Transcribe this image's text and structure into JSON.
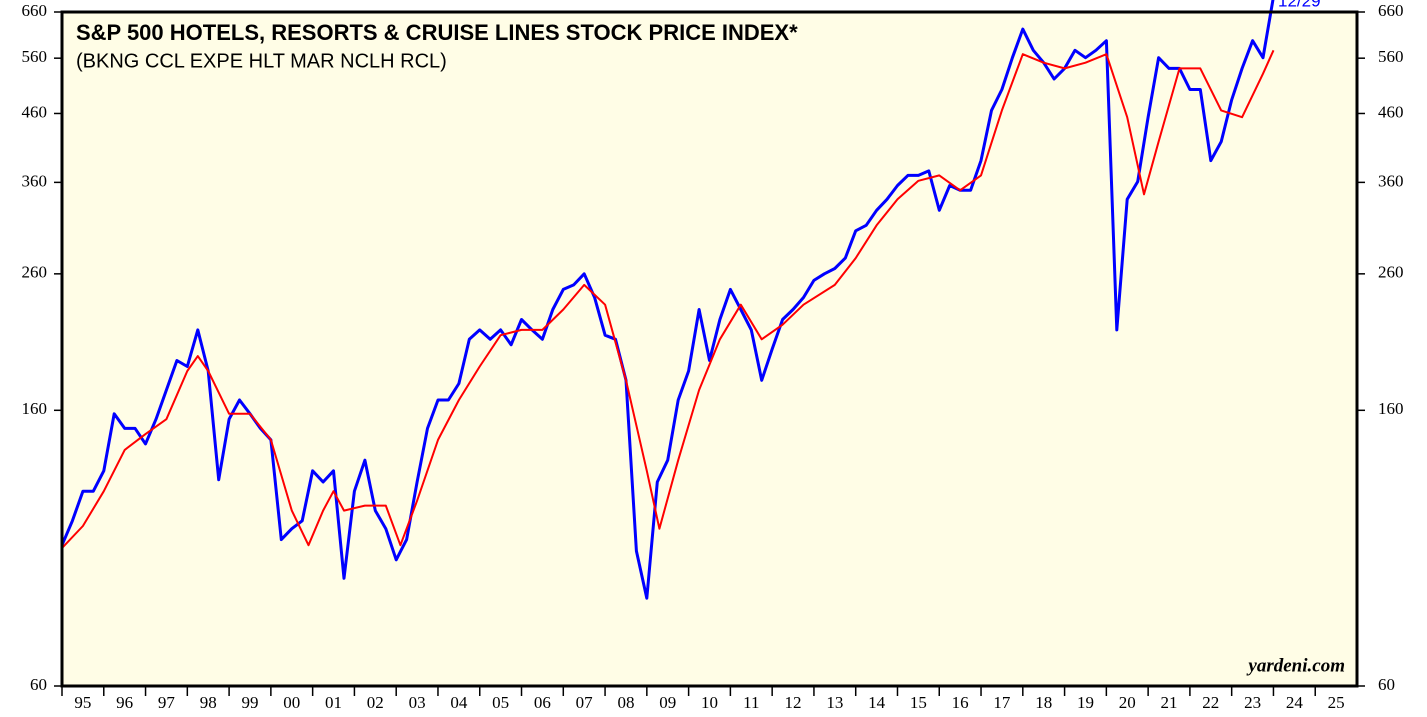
{
  "chart_data": {
    "type": "line",
    "title": "S&P 500 HOTELS, RESORTS & CRUISE LINES STOCK PRICE INDEX*",
    "subtitle": "(BKNG CCL EXPE HLT MAR NCLH RCL)",
    "source": "yardeni.com",
    "annotation": "12/29",
    "log_scale": true,
    "ylim": [
      60,
      660
    ],
    "yticks": [
      60,
      160,
      260,
      360,
      460,
      560,
      660
    ],
    "xlim": [
      1995,
      2026
    ],
    "xticks": [
      {
        "value": 1995,
        "label": "95"
      },
      {
        "value": 1996,
        "label": "96"
      },
      {
        "value": 1997,
        "label": "97"
      },
      {
        "value": 1998,
        "label": "98"
      },
      {
        "value": 1999,
        "label": "99"
      },
      {
        "value": 2000,
        "label": "00"
      },
      {
        "value": 2001,
        "label": "01"
      },
      {
        "value": 2002,
        "label": "02"
      },
      {
        "value": 2003,
        "label": "03"
      },
      {
        "value": 2004,
        "label": "04"
      },
      {
        "value": 2005,
        "label": "05"
      },
      {
        "value": 2006,
        "label": "06"
      },
      {
        "value": 2007,
        "label": "07"
      },
      {
        "value": 2008,
        "label": "08"
      },
      {
        "value": 2009,
        "label": "09"
      },
      {
        "value": 2010,
        "label": "10"
      },
      {
        "value": 2011,
        "label": "11"
      },
      {
        "value": 2012,
        "label": "12"
      },
      {
        "value": 2013,
        "label": "13"
      },
      {
        "value": 2014,
        "label": "14"
      },
      {
        "value": 2015,
        "label": "15"
      },
      {
        "value": 2016,
        "label": "16"
      },
      {
        "value": 2017,
        "label": "17"
      },
      {
        "value": 2018,
        "label": "18"
      },
      {
        "value": 2019,
        "label": "19"
      },
      {
        "value": 2020,
        "label": "20"
      },
      {
        "value": 2021,
        "label": "21"
      },
      {
        "value": 2022,
        "label": "22"
      },
      {
        "value": 2023,
        "label": "23"
      },
      {
        "value": 2024,
        "label": "24"
      },
      {
        "value": 2025,
        "label": "25"
      }
    ],
    "series": [
      {
        "color": "#0000ff",
        "x": [
          1995,
          1995.25,
          1995.5,
          1995.75,
          1996,
          1996.25,
          1996.5,
          1996.75,
          1997,
          1997.25,
          1997.5,
          1997.75,
          1998,
          1998.25,
          1998.5,
          1998.75,
          1999,
          1999.25,
          1999.5,
          1999.75,
          2000,
          2000.25,
          2000.5,
          2000.75,
          2001,
          2001.25,
          2001.5,
          2001.75,
          2002,
          2002.25,
          2002.5,
          2002.75,
          2003,
          2003.25,
          2003.5,
          2003.75,
          2004,
          2004.25,
          2004.5,
          2004.75,
          2005,
          2005.25,
          2005.5,
          2005.75,
          2006,
          2006.25,
          2006.5,
          2006.75,
          2007,
          2007.25,
          2007.5,
          2007.75,
          2008,
          2008.25,
          2008.5,
          2008.75,
          2009,
          2009.25,
          2009.5,
          2009.75,
          2010,
          2010.25,
          2010.5,
          2010.75,
          2011,
          2011.25,
          2011.5,
          2011.75,
          2012,
          2012.25,
          2012.5,
          2012.75,
          2013,
          2013.25,
          2013.5,
          2013.75,
          2014,
          2014.25,
          2014.5,
          2014.75,
          2015,
          2015.25,
          2015.5,
          2015.75,
          2016,
          2016.25,
          2016.5,
          2016.75,
          2017,
          2017.25,
          2017.5,
          2017.75,
          2018,
          2018.25,
          2018.5,
          2018.75,
          2019,
          2019.25,
          2019.5,
          2019.75,
          2020,
          2020.25,
          2020.5,
          2020.75,
          2021,
          2021.25,
          2021.5,
          2021.75,
          2022,
          2022.25,
          2022.5,
          2022.75,
          2023,
          2023.25,
          2023.5,
          2023.75,
          2023.99
        ],
        "values": [
          99,
          108,
          120,
          120,
          129,
          158,
          150,
          150,
          142,
          155,
          172,
          191,
          187,
          213,
          184,
          125,
          155,
          166,
          158,
          150,
          144,
          101,
          105,
          108,
          129,
          124,
          129,
          88,
          120,
          134,
          112,
          105,
          94,
          101,
          124,
          150,
          166,
          166,
          176,
          206,
          213,
          206,
          213,
          202,
          221,
          213,
          206,
          229,
          246,
          250,
          260,
          239,
          209,
          206,
          178,
          97,
          82,
          124,
          134,
          166,
          184,
          229,
          191,
          221,
          246,
          229,
          213,
          178,
          199,
          221,
          229,
          239,
          254,
          260,
          265,
          275,
          303,
          309,
          326,
          339,
          356,
          369,
          369,
          375,
          326,
          356,
          350,
          350,
          389,
          465,
          501,
          561,
          621,
          576,
          551,
          520,
          540,
          576,
          561,
          576,
          596,
          213,
          339,
          361,
          454,
          561,
          540,
          540,
          501,
          501,
          389,
          416,
          483,
          540,
          596,
          561,
          690
        ]
      },
      {
        "color": "#ff0000",
        "x": [
          1995,
          1995.5,
          1996,
          1996.5,
          1997,
          1997.5,
          1998,
          1998.25,
          1998.5,
          1999,
          1999.5,
          2000,
          2000.5,
          2000.9,
          2001.25,
          2001.5,
          2001.75,
          2002.25,
          2002.75,
          2003.1,
          2003.5,
          2004,
          2004.5,
          2005,
          2005.5,
          2006,
          2006.5,
          2007,
          2007.5,
          2008,
          2008.5,
          2009,
          2009.3,
          2009.75,
          2010.25,
          2010.75,
          2011.25,
          2011.75,
          2012.25,
          2012.75,
          2013.5,
          2014,
          2014.5,
          2015,
          2015.5,
          2016,
          2016.5,
          2017,
          2017.5,
          2018,
          2018.5,
          2019,
          2019.5,
          2020,
          2020.5,
          2020.9,
          2021.25,
          2021.75,
          2022.25,
          2022.75,
          2023.25,
          2023.75,
          2024
        ],
        "values": [
          98,
          106,
          120,
          139,
          147,
          155,
          184,
          194,
          184,
          158,
          158,
          144,
          112,
          99,
          112,
          120,
          112,
          114,
          114,
          99,
          116,
          144,
          166,
          187,
          209,
          213,
          213,
          229,
          250,
          233,
          178,
          129,
          105,
          134,
          172,
          206,
          233,
          206,
          217,
          233,
          250,
          275,
          309,
          339,
          362,
          369,
          350,
          369,
          465,
          568,
          551,
          540,
          551,
          568,
          454,
          345,
          416,
          540,
          540,
          465,
          454,
          530,
          576
        ]
      }
    ]
  }
}
